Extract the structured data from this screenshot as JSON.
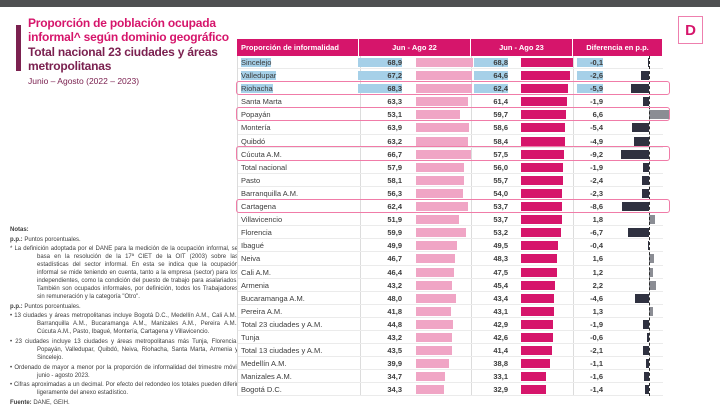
{
  "logo": {
    "letter": "D"
  },
  "title": {
    "line1": "Proporción de población ocupada",
    "line2": "informal^ según dominio geográfico",
    "line3": "Total nacional 23 ciudades y áreas",
    "line4": "metropolitanas",
    "subtitle": "Junio – Agosto (2022 – 2023)"
  },
  "notes": {
    "heading": "Notas:",
    "pp_label": "p.p.:",
    "pp_text": " Puntos porcentuales.",
    "def": "* La definición adoptada por el DANE para la medición de la ocupación informal, se basa en la resolución de la 17ª CIET de la OIT (2003) sobre las estadísticas del sector informal. En esta se indica que la ocupación informal se mide teniendo en cuenta, tanto a la empresa (sector) para los independientes, como la condición del puesto de trabajo para asalariados. También son ocupados informales, por definición, todos los Trabajadores sin remuneración y la categoría \"Otro\".",
    "cities13": "• 13 ciudades y áreas metropolitanas incluye Bogotá D.C., Medellín A.M., Cali A.M., Barranquilla A.M., Bucaramanga A.M., Manizales A.M., Pereira A.M., Cúcuta A.M., Pasto, Ibagué, Montería, Cartagena y Villavicencio.",
    "cities23": "• 23 ciudades incluye 13 ciudades y áreas metropolitanas más Tunja, Florencia, Popayán, Valledupar, Quibdó, Neiva, Riohacha, Santa Marta, Armenia y Sincelejo.",
    "order": "• Ordenado de mayor a menor por la proporción de informalidad del trimestre móvil junio - agosto 2023.",
    "rounding": "• Cifras aproximadas a un decimal. Por efecto del redondeo los totales pueden diferir ligeramente del anexo estadístico.",
    "source_label": "Fuente:",
    "source_text": " DANE, GEIH."
  },
  "colors": {
    "accent_pink": "#d6156b",
    "light_pink_bar": "#f0a5c5",
    "negative_bar": "#2f3140",
    "positive_bar": "#8b8d94",
    "selection_blue": "#a6d0e8",
    "maroon": "#7b2150",
    "outline_pink": "#f07ca8"
  },
  "chart_data": {
    "type": "bar",
    "title": "Proporción de población ocupada informal^ según dominio geográfico — Total nacional 23 ciudades y áreas metropolitanas",
    "subtitle": "Junio – Agosto (2022 – 2023)",
    "unit": "%",
    "bar_axis_max": 69,
    "diff_axis_range": [
      -9.2,
      6.6
    ],
    "legend_position": "column headers",
    "columns": [
      "Proporción de informalidad",
      "Jun - Ago 22",
      "Jun - Ago 23",
      "Diferencia en p.p."
    ],
    "series": [
      {
        "name": "Jun - Ago 22",
        "style": "light-pink-bar"
      },
      {
        "name": "Jun - Ago 23",
        "style": "dark-pink-bar"
      },
      {
        "name": "Diferencia en p.p.",
        "style": "diverging-bar"
      }
    ],
    "rows": [
      {
        "name": "Sincelejo",
        "y22": 68.9,
        "y23": 68.8,
        "diff": -0.1,
        "sel": true,
        "box": false
      },
      {
        "name": "Valledupar",
        "y22": 67.2,
        "y23": 64.6,
        "diff": -2.6,
        "sel": true,
        "box": false
      },
      {
        "name": "Riohacha",
        "y22": 68.3,
        "y23": 62.4,
        "diff": -5.9,
        "sel": true,
        "box": true
      },
      {
        "name": "Santa Marta",
        "y22": 63.3,
        "y23": 61.4,
        "diff": -1.9,
        "sel": false,
        "box": false
      },
      {
        "name": "Popayán",
        "y22": 53.1,
        "y23": 59.7,
        "diff": 6.6,
        "sel": false,
        "box": true
      },
      {
        "name": "Montería",
        "y22": 63.9,
        "y23": 58.6,
        "diff": -5.4,
        "sel": false,
        "box": false
      },
      {
        "name": "Quibdó",
        "y22": 63.2,
        "y23": 58.4,
        "diff": -4.9,
        "sel": false,
        "box": false
      },
      {
        "name": "Cúcuta A.M.",
        "y22": 66.7,
        "y23": 57.5,
        "diff": -9.2,
        "sel": false,
        "box": true
      },
      {
        "name": "Total nacional",
        "y22": 57.9,
        "y23": 56.0,
        "diff": -1.9,
        "sel": false,
        "box": false
      },
      {
        "name": "Pasto",
        "y22": 58.1,
        "y23": 55.7,
        "diff": -2.4,
        "sel": false,
        "box": false
      },
      {
        "name": "Barranquilla A.M.",
        "y22": 56.3,
        "y23": 54.0,
        "diff": -2.3,
        "sel": false,
        "box": false
      },
      {
        "name": "Cartagena",
        "y22": 62.4,
        "y23": 53.7,
        "diff": -8.6,
        "sel": false,
        "box": true
      },
      {
        "name": "Villavicencio",
        "y22": 51.9,
        "y23": 53.7,
        "diff": 1.8,
        "sel": false,
        "box": false
      },
      {
        "name": "Florencia",
        "y22": 59.9,
        "y23": 53.2,
        "diff": -6.7,
        "sel": false,
        "box": false
      },
      {
        "name": "Ibagué",
        "y22": 49.9,
        "y23": 49.5,
        "diff": -0.4,
        "sel": false,
        "box": false
      },
      {
        "name": "Neiva",
        "y22": 46.7,
        "y23": 48.3,
        "diff": 1.6,
        "sel": false,
        "box": false
      },
      {
        "name": "Cali A.M.",
        "y22": 46.4,
        "y23": 47.5,
        "diff": 1.2,
        "sel": false,
        "box": false
      },
      {
        "name": "Armenia",
        "y22": 43.2,
        "y23": 45.4,
        "diff": 2.2,
        "sel": false,
        "box": false
      },
      {
        "name": "Bucaramanga A.M.",
        "y22": 48.0,
        "y23": 43.4,
        "diff": -4.6,
        "sel": false,
        "box": false
      },
      {
        "name": "Pereira A.M.",
        "y22": 41.8,
        "y23": 43.1,
        "diff": 1.3,
        "sel": false,
        "box": false
      },
      {
        "name": "Total 23 ciudades y A.M.",
        "y22": 44.8,
        "y23": 42.9,
        "diff": -1.9,
        "sel": false,
        "box": false
      },
      {
        "name": "Tunja",
        "y22": 43.2,
        "y23": 42.6,
        "diff": -0.6,
        "sel": false,
        "box": false
      },
      {
        "name": "Total 13 ciudades y A.M.",
        "y22": 43.5,
        "y23": 41.4,
        "diff": -2.1,
        "sel": false,
        "box": false
      },
      {
        "name": "Medellín A.M.",
        "y22": 39.9,
        "y23": 38.8,
        "diff": -1.1,
        "sel": false,
        "box": false
      },
      {
        "name": "Manizales A.M.",
        "y22": 34.7,
        "y23": 33.1,
        "diff": -1.6,
        "sel": false,
        "box": false
      },
      {
        "name": "Bogotá D.C.",
        "y22": 34.3,
        "y23": 32.9,
        "diff": -1.4,
        "sel": false,
        "box": false
      }
    ]
  }
}
